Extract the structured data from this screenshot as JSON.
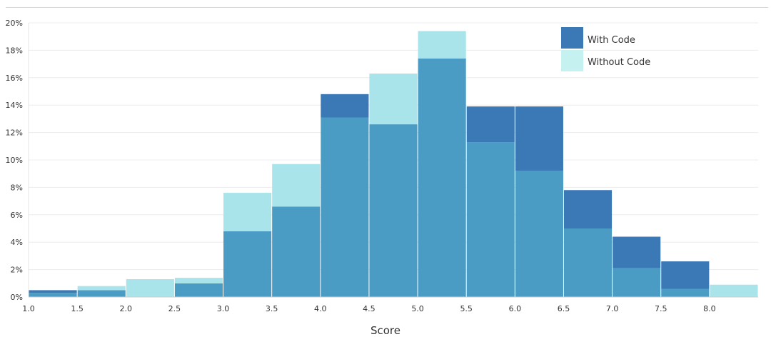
{
  "chart_data": {
    "type": "bar",
    "xlabel": "Score",
    "ylabel": "",
    "x_ticks": [
      "1.0",
      "1.5",
      "2.0",
      "2.5",
      "3.0",
      "3.5",
      "4.0",
      "4.5",
      "5.0",
      "5.5",
      "6.0",
      "6.5",
      "7.0",
      "7.5",
      "8.0"
    ],
    "y_ticks": [
      "0%",
      "2%",
      "4%",
      "6%",
      "8%",
      "10%",
      "12%",
      "14%",
      "16%",
      "18%",
      "20%"
    ],
    "xlim": [
      1.0,
      8.5
    ],
    "ylim": [
      0,
      20
    ],
    "bin_width": 0.5,
    "bins": [
      1.0,
      1.5,
      2.0,
      2.5,
      3.0,
      3.5,
      4.0,
      4.5,
      5.0,
      5.5,
      6.0,
      6.5,
      7.0,
      7.5,
      8.0
    ],
    "series": [
      {
        "name": "With Code",
        "color": "#3a78b6",
        "values": [
          0.5,
          0.5,
          0.0,
          1.0,
          4.8,
          6.6,
          14.8,
          12.6,
          17.4,
          13.9,
          13.9,
          7.8,
          4.4,
          2.6,
          0.0
        ]
      },
      {
        "name": "Without Code",
        "color": "#a8e4ea",
        "values": [
          0.3,
          0.8,
          1.3,
          1.4,
          7.6,
          9.7,
          13.1,
          16.3,
          19.4,
          11.3,
          9.2,
          5.0,
          2.1,
          0.6,
          0.9
        ]
      }
    ],
    "overlap_color": "#4a9cc4",
    "grid": true,
    "legend_position": "top-right"
  }
}
